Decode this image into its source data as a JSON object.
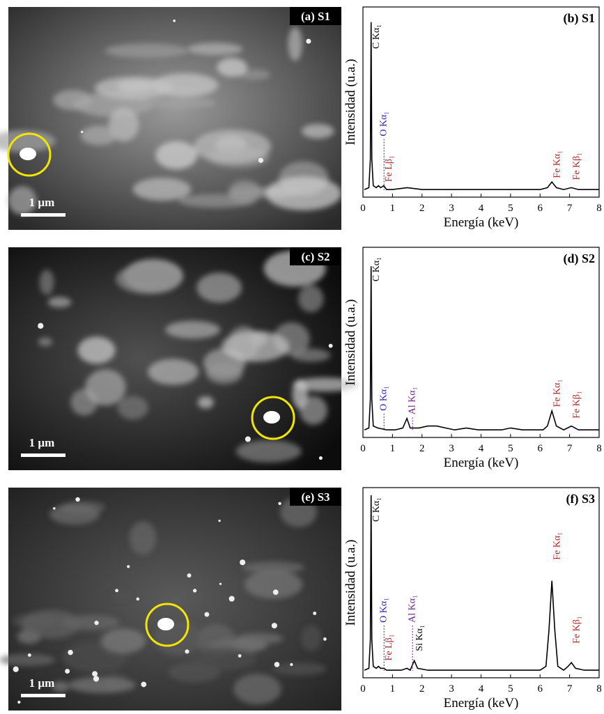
{
  "images": [
    {
      "label": "(a) S1",
      "scale": "1 µm"
    },
    {
      "label": "(c) S2",
      "scale": "1 µm"
    },
    {
      "label": "(e) S3",
      "scale": "1 µm"
    }
  ],
  "chart_data": [
    {
      "type": "line",
      "title": "(b) S1",
      "x_label": "Energía (keV)",
      "y_label": "Intensidad (u.a.)",
      "color": "#000000",
      "xlim": [
        0,
        8
      ],
      "xticks": [
        0,
        1,
        2,
        3,
        4,
        5,
        6,
        7,
        8
      ],
      "ylim": [
        0,
        100
      ],
      "x": [
        0.05,
        0.2,
        0.25,
        0.277,
        0.3,
        0.35,
        0.45,
        0.525,
        0.6,
        0.705,
        0.8,
        1.0,
        1.5,
        2,
        3,
        4,
        5,
        6,
        6.25,
        6.4,
        6.55,
        6.8,
        7.06,
        7.3,
        8
      ],
      "values": [
        4,
        5,
        20,
        92,
        20,
        6,
        5,
        6,
        5,
        6,
        4,
        4,
        5,
        4,
        4,
        4,
        4,
        4,
        5,
        8,
        5,
        4,
        5,
        4,
        4
      ],
      "annotations": [
        {
          "text": "C Kα₁",
          "x": 0.277,
          "y": 78,
          "color": "#000000",
          "leader": false
        },
        {
          "text": "O Kα₁",
          "x": 0.525,
          "y": 32,
          "color": "#1f1fb0",
          "leader": true
        },
        {
          "text": "Fe Lβ₁",
          "x": 0.705,
          "y": 8,
          "color": "#b02020",
          "leader": false
        },
        {
          "text": "Fe Kα₁",
          "x": 6.4,
          "y": 10,
          "color": "#b02020",
          "leader": false
        },
        {
          "text": "Fe Kβ₁",
          "x": 7.06,
          "y": 9,
          "color": "#b02020",
          "leader": false
        }
      ]
    },
    {
      "type": "line",
      "title": "(d) S2",
      "x_label": "Energía (keV)",
      "y_label": "Intensidad (u.a.)",
      "color": "#000000",
      "xlim": [
        0,
        8
      ],
      "xticks": [
        0,
        1,
        2,
        3,
        4,
        5,
        6,
        7,
        8
      ],
      "ylim": [
        0,
        100
      ],
      "x": [
        0.05,
        0.2,
        0.25,
        0.277,
        0.3,
        0.35,
        0.5,
        0.8,
        1.1,
        1.35,
        1.49,
        1.6,
        1.9,
        2.2,
        2.5,
        2.8,
        3.1,
        3.5,
        3.9,
        4.3,
        4.7,
        5.0,
        5.4,
        5.8,
        6.1,
        6.25,
        6.4,
        6.55,
        6.8,
        7.06,
        7.3,
        7.6,
        8
      ],
      "values": [
        4,
        5,
        20,
        90,
        20,
        6,
        5,
        4,
        4,
        5,
        10,
        5,
        5,
        6,
        6,
        5,
        4,
        5,
        4,
        4,
        4,
        5,
        4,
        4,
        4,
        6,
        14,
        6,
        4,
        6,
        4,
        4,
        4
      ],
      "annotations": [
        {
          "text": "C Kα₁",
          "x": 0.277,
          "y": 82,
          "color": "#000000",
          "leader": false
        },
        {
          "text": "O Kα₁",
          "x": 0.525,
          "y": 14,
          "color": "#1f1fb0",
          "leader": true
        },
        {
          "text": "Al Kα₁",
          "x": 1.49,
          "y": 12,
          "color": "#6a1f8a",
          "leader": true
        },
        {
          "text": "Fe Kα₁",
          "x": 6.4,
          "y": 16,
          "color": "#b02020",
          "leader": false
        },
        {
          "text": "Fe Kβ₁",
          "x": 7.06,
          "y": 10,
          "color": "#b02020",
          "leader": false
        }
      ]
    },
    {
      "type": "line",
      "title": "(f) S3",
      "x_label": "Energía (keV)",
      "y_label": "Intensidad (u.a.)",
      "color": "#000000",
      "xlim": [
        0,
        8
      ],
      "xticks": [
        0,
        1,
        2,
        3,
        4,
        5,
        6,
        7,
        8
      ],
      "ylim": [
        0,
        100
      ],
      "x": [
        0.05,
        0.2,
        0.25,
        0.277,
        0.3,
        0.35,
        0.45,
        0.525,
        0.6,
        0.705,
        0.8,
        1.0,
        1.3,
        1.49,
        1.6,
        1.74,
        1.85,
        2.2,
        3,
        4,
        5,
        6,
        6.2,
        6.3,
        6.4,
        6.5,
        6.6,
        6.8,
        6.95,
        7.06,
        7.2,
        7.5,
        8
      ],
      "values": [
        4,
        5,
        20,
        96,
        20,
        6,
        5,
        6,
        5,
        5,
        4,
        4,
        4,
        5,
        4,
        9,
        5,
        4,
        4,
        4,
        4,
        4,
        6,
        25,
        51,
        25,
        6,
        4,
        6,
        8,
        5,
        4,
        4
      ],
      "annotations": [
        {
          "text": "C Kα₁",
          "x": 0.277,
          "y": 82,
          "color": "#000000",
          "leader": false
        },
        {
          "text": "O Kα₁",
          "x": 0.525,
          "y": 29,
          "color": "#1f1fb0",
          "leader": true
        },
        {
          "text": "Fe Lβ₁",
          "x": 0.705,
          "y": 9,
          "color": "#b02020",
          "leader": false
        },
        {
          "text": "Al Kα₁",
          "x": 1.49,
          "y": 29,
          "color": "#6a1f8a",
          "leader": true
        },
        {
          "text": "Si Kα₁",
          "x": 1.74,
          "y": 14,
          "color": "#000000",
          "leader": false
        },
        {
          "text": "Fe Kα₁",
          "x": 6.4,
          "y": 62,
          "color": "#b02020",
          "leader": false
        },
        {
          "text": "Fe Kβ₁",
          "x": 7.06,
          "y": 18,
          "color": "#b02020",
          "leader": false
        }
      ]
    }
  ]
}
